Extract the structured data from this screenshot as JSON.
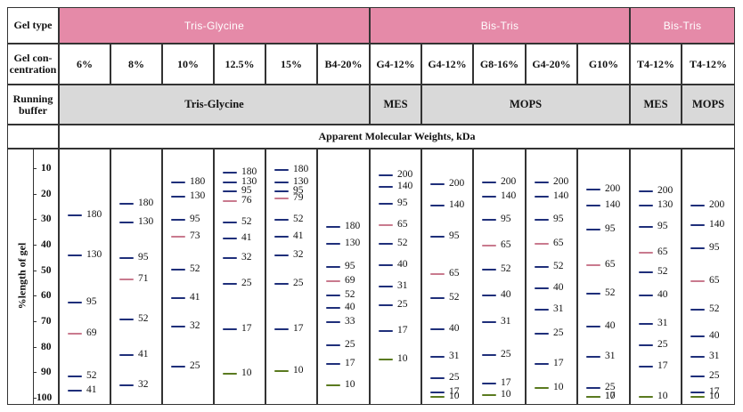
{
  "row_labels": {
    "gel_type": "Gel type",
    "gel_concentration": "Gel con-centration",
    "running_buffer": "Running buffer",
    "axis": "%length of gel"
  },
  "gel_types": [
    "Tris-Glycine",
    "Bis-Tris",
    "Bis-Tris"
  ],
  "concentrations": [
    "6%",
    "8%",
    "10%",
    "12.5%",
    "15%",
    "B4-20%",
    "G4-12%",
    "G4-12%",
    "G8-16%",
    "G4-20%",
    "G10%",
    "T4-12%",
    "T4-12%"
  ],
  "buffers": [
    "Tris-Glycine",
    "MES",
    "MOPS",
    "MES",
    "MOPS"
  ],
  "apparent_mw_header": "Apparent Molecular Weights, kDa",
  "axis_ticks": [
    10,
    20,
    30,
    40,
    50,
    60,
    70,
    80,
    90,
    100
  ],
  "colors": {
    "blue": "#1f2f7a",
    "pink": "#c97a8e",
    "green": "#5a7a1f",
    "header_pink": "#e58aa8",
    "grey": "#d9d9d9"
  },
  "lanes": [
    {
      "bands": [
        {
          "mw": "180",
          "pos": 21,
          "color": "blue"
        },
        {
          "mw": "130",
          "pos": 38,
          "color": "blue"
        },
        {
          "mw": "95",
          "pos": 58,
          "color": "blue"
        },
        {
          "mw": "69",
          "pos": 71,
          "color": "pink"
        },
        {
          "mw": "52",
          "pos": 89,
          "color": "blue"
        },
        {
          "mw": "41",
          "pos": 95,
          "color": "blue"
        }
      ]
    },
    {
      "bands": [
        {
          "mw": "180",
          "pos": 16,
          "color": "blue"
        },
        {
          "mw": "130",
          "pos": 24,
          "color": "blue"
        },
        {
          "mw": "95",
          "pos": 39,
          "color": "blue"
        },
        {
          "mw": "71",
          "pos": 48,
          "color": "pink"
        },
        {
          "mw": "52",
          "pos": 65,
          "color": "blue"
        },
        {
          "mw": "41",
          "pos": 80,
          "color": "blue"
        },
        {
          "mw": "32",
          "pos": 93,
          "color": "blue"
        }
      ]
    },
    {
      "bands": [
        {
          "mw": "180",
          "pos": 7,
          "color": "blue"
        },
        {
          "mw": "130",
          "pos": 13,
          "color": "blue"
        },
        {
          "mw": "95",
          "pos": 23,
          "color": "blue"
        },
        {
          "mw": "73",
          "pos": 30,
          "color": "pink"
        },
        {
          "mw": "52",
          "pos": 44,
          "color": "blue"
        },
        {
          "mw": "41",
          "pos": 56,
          "color": "blue"
        },
        {
          "mw": "32",
          "pos": 68,
          "color": "blue"
        },
        {
          "mw": "25",
          "pos": 85,
          "color": "blue"
        }
      ]
    },
    {
      "bands": [
        {
          "mw": "180",
          "pos": 3,
          "color": "blue"
        },
        {
          "mw": "130",
          "pos": 7,
          "color": "blue"
        },
        {
          "mw": "95",
          "pos": 11,
          "color": "blue"
        },
        {
          "mw": "76",
          "pos": 15,
          "color": "pink"
        },
        {
          "mw": "52",
          "pos": 24,
          "color": "blue"
        },
        {
          "mw": "41",
          "pos": 31,
          "color": "blue"
        },
        {
          "mw": "32",
          "pos": 39,
          "color": "blue"
        },
        {
          "mw": "25",
          "pos": 50,
          "color": "blue"
        },
        {
          "mw": "17",
          "pos": 69,
          "color": "blue"
        },
        {
          "mw": "10",
          "pos": 88,
          "color": "green"
        }
      ]
    },
    {
      "bands": [
        {
          "mw": "180",
          "pos": 2,
          "color": "blue"
        },
        {
          "mw": "130",
          "pos": 7,
          "color": "blue"
        },
        {
          "mw": "95",
          "pos": 11,
          "color": "blue"
        },
        {
          "mw": "79",
          "pos": 14,
          "color": "pink"
        },
        {
          "mw": "52",
          "pos": 23,
          "color": "blue"
        },
        {
          "mw": "41",
          "pos": 30,
          "color": "blue"
        },
        {
          "mw": "32",
          "pos": 38,
          "color": "blue"
        },
        {
          "mw": "25",
          "pos": 50,
          "color": "blue"
        },
        {
          "mw": "17",
          "pos": 69,
          "color": "blue"
        },
        {
          "mw": "10",
          "pos": 87,
          "color": "green"
        }
      ]
    },
    {
      "bands": [
        {
          "mw": "180",
          "pos": 26,
          "color": "blue"
        },
        {
          "mw": "130",
          "pos": 33,
          "color": "blue"
        },
        {
          "mw": "95",
          "pos": 43,
          "color": "blue"
        },
        {
          "mw": "69",
          "pos": 49,
          "color": "pink"
        },
        {
          "mw": "52",
          "pos": 55,
          "color": "blue"
        },
        {
          "mw": "40",
          "pos": 60,
          "color": "blue"
        },
        {
          "mw": "33",
          "pos": 66,
          "color": "blue"
        },
        {
          "mw": "25",
          "pos": 76,
          "color": "blue"
        },
        {
          "mw": "17",
          "pos": 84,
          "color": "blue"
        },
        {
          "mw": "10",
          "pos": 93,
          "color": "green"
        }
      ]
    },
    {
      "bands": [
        {
          "mw": "200",
          "pos": 4,
          "color": "blue"
        },
        {
          "mw": "140",
          "pos": 9,
          "color": "blue"
        },
        {
          "mw": "95",
          "pos": 16,
          "color": "blue"
        },
        {
          "mw": "65",
          "pos": 25,
          "color": "pink"
        },
        {
          "mw": "52",
          "pos": 33,
          "color": "blue"
        },
        {
          "mw": "40",
          "pos": 42,
          "color": "blue"
        },
        {
          "mw": "31",
          "pos": 51,
          "color": "blue"
        },
        {
          "mw": "25",
          "pos": 59,
          "color": "blue"
        },
        {
          "mw": "17",
          "pos": 70,
          "color": "blue"
        },
        {
          "mw": "10",
          "pos": 82,
          "color": "green"
        }
      ]
    },
    {
      "bands": [
        {
          "mw": "200",
          "pos": 8,
          "color": "blue"
        },
        {
          "mw": "140",
          "pos": 17,
          "color": "blue"
        },
        {
          "mw": "95",
          "pos": 30,
          "color": "blue"
        },
        {
          "mw": "65",
          "pos": 46,
          "color": "pink"
        },
        {
          "mw": "52",
          "pos": 56,
          "color": "blue"
        },
        {
          "mw": "40",
          "pos": 69,
          "color": "blue"
        },
        {
          "mw": "31",
          "pos": 81,
          "color": "blue"
        },
        {
          "mw": "25",
          "pos": 90,
          "color": "blue"
        },
        {
          "mw": "17",
          "pos": 96,
          "color": "blue"
        },
        {
          "mw": "10",
          "pos": 99,
          "color": "green"
        }
      ]
    },
    {
      "bands": [
        {
          "mw": "200",
          "pos": 7,
          "color": "blue"
        },
        {
          "mw": "140",
          "pos": 13,
          "color": "blue"
        },
        {
          "mw": "95",
          "pos": 23,
          "color": "blue"
        },
        {
          "mw": "65",
          "pos": 34,
          "color": "pink"
        },
        {
          "mw": "52",
          "pos": 44,
          "color": "blue"
        },
        {
          "mw": "40",
          "pos": 55,
          "color": "blue"
        },
        {
          "mw": "31",
          "pos": 66,
          "color": "blue"
        },
        {
          "mw": "25",
          "pos": 80,
          "color": "blue"
        },
        {
          "mw": "17",
          "pos": 92,
          "color": "blue"
        },
        {
          "mw": "10",
          "pos": 97,
          "color": "green"
        }
      ]
    },
    {
      "bands": [
        {
          "mw": "200",
          "pos": 7,
          "color": "blue"
        },
        {
          "mw": "140",
          "pos": 13,
          "color": "blue"
        },
        {
          "mw": "95",
          "pos": 23,
          "color": "blue"
        },
        {
          "mw": "65",
          "pos": 33,
          "color": "pink"
        },
        {
          "mw": "52",
          "pos": 43,
          "color": "blue"
        },
        {
          "mw": "40",
          "pos": 52,
          "color": "blue"
        },
        {
          "mw": "31",
          "pos": 61,
          "color": "blue"
        },
        {
          "mw": "25",
          "pos": 71,
          "color": "blue"
        },
        {
          "mw": "17",
          "pos": 84,
          "color": "blue"
        },
        {
          "mw": "10",
          "pos": 94,
          "color": "green"
        }
      ]
    },
    {
      "bands": [
        {
          "mw": "200",
          "pos": 10,
          "color": "blue"
        },
        {
          "mw": "140",
          "pos": 17,
          "color": "blue"
        },
        {
          "mw": "95",
          "pos": 27,
          "color": "blue"
        },
        {
          "mw": "65",
          "pos": 42,
          "color": "pink"
        },
        {
          "mw": "52",
          "pos": 54,
          "color": "blue"
        },
        {
          "mw": "40",
          "pos": 68,
          "color": "blue"
        },
        {
          "mw": "31",
          "pos": 81,
          "color": "blue"
        },
        {
          "mw": "25",
          "pos": 94,
          "color": "blue"
        },
        {
          "mw": "17",
          "pos": 98,
          "color": "blue"
        },
        {
          "mw": "10",
          "pos": 101,
          "color": "green"
        }
      ]
    },
    {
      "bands": [
        {
          "mw": "200",
          "pos": 11,
          "color": "blue"
        },
        {
          "mw": "130",
          "pos": 17,
          "color": "blue"
        },
        {
          "mw": "95",
          "pos": 26,
          "color": "blue"
        },
        {
          "mw": "65",
          "pos": 37,
          "color": "pink"
        },
        {
          "mw": "52",
          "pos": 45,
          "color": "blue"
        },
        {
          "mw": "40",
          "pos": 55,
          "color": "blue"
        },
        {
          "mw": "31",
          "pos": 67,
          "color": "blue"
        },
        {
          "mw": "25",
          "pos": 76,
          "color": "blue"
        },
        {
          "mw": "17",
          "pos": 85,
          "color": "blue"
        },
        {
          "mw": "10",
          "pos": 98,
          "color": "green"
        }
      ]
    },
    {
      "bands": [
        {
          "mw": "200",
          "pos": 17,
          "color": "blue"
        },
        {
          "mw": "140",
          "pos": 25,
          "color": "blue"
        },
        {
          "mw": "95",
          "pos": 35,
          "color": "blue"
        },
        {
          "mw": "65",
          "pos": 49,
          "color": "pink"
        },
        {
          "mw": "52",
          "pos": 61,
          "color": "blue"
        },
        {
          "mw": "40",
          "pos": 72,
          "color": "blue"
        },
        {
          "mw": "31",
          "pos": 81,
          "color": "blue"
        },
        {
          "mw": "25",
          "pos": 89,
          "color": "blue"
        },
        {
          "mw": "17",
          "pos": 96,
          "color": "blue"
        },
        {
          "mw": "10",
          "pos": 101,
          "color": "green"
        }
      ]
    }
  ]
}
